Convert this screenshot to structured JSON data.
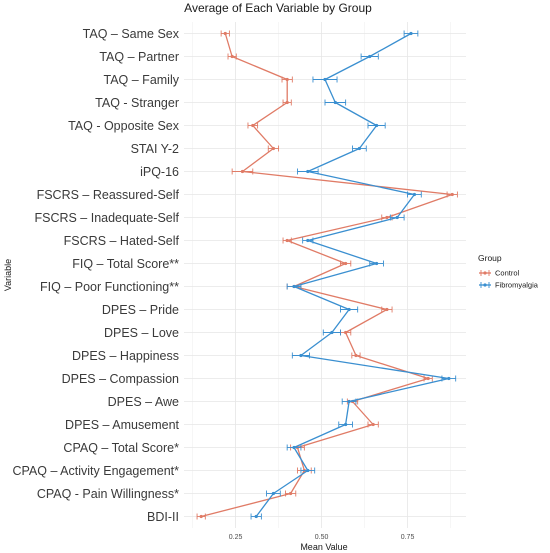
{
  "chart_data": {
    "type": "line",
    "title": "Average of Each Variable by Group",
    "xlabel": "Mean Value",
    "ylabel": "Variable",
    "xlim": [
      0.1,
      0.92
    ],
    "xticks": [
      0.25,
      0.5,
      0.75
    ],
    "xtick_labels": [
      "0.25",
      "0.50",
      "0.75"
    ],
    "grid": true,
    "orientation": "horizontal",
    "categories": [
      "TAQ – Same Sex",
      "TAQ – Partner",
      "TAQ – Family",
      "TAQ - Stranger",
      "TAQ - Opposite Sex",
      "STAI Y-2",
      "iPQ-16",
      "FSCRS – Reassured-Self",
      "FSCRS – Inadequate-Self",
      "FSCRS – Hated-Self",
      "FIQ – Total Score**",
      "FIQ – Poor Functioning**",
      "DPES – Pride",
      "DPES – Love",
      "DPES – Happiness",
      "DPES – Compassion",
      "DPES – Awe",
      "DPES – Amusement",
      "CPAQ – Total Score*",
      "CPAQ – Activity Engagement*",
      "CPAQ - Pain Willingness*",
      "BDI-II"
    ],
    "legend": {
      "title": "Group",
      "position": "right"
    },
    "series": [
      {
        "name": "Control",
        "color": "#e07b66",
        "values": [
          0.22,
          0.24,
          0.4,
          0.4,
          0.3,
          0.36,
          0.27,
          0.88,
          0.69,
          0.4,
          0.57,
          0.42,
          0.69,
          0.57,
          0.6,
          0.81,
          0.59,
          0.65,
          0.43,
          0.45,
          0.41,
          0.15
        ],
        "errors": [
          0.012,
          0.012,
          0.015,
          0.012,
          0.014,
          0.015,
          0.03,
          0.015,
          0.015,
          0.012,
          0.015,
          0.02,
          0.015,
          0.015,
          0.012,
          0.012,
          0.015,
          0.015,
          0.02,
          0.02,
          0.015,
          0.012
        ]
      },
      {
        "name": "Fibromyalgia",
        "color": "#3a8fd0",
        "values": [
          0.76,
          0.64,
          0.51,
          0.54,
          0.66,
          0.61,
          0.46,
          0.77,
          0.72,
          0.46,
          0.66,
          0.42,
          0.58,
          0.53,
          0.44,
          0.87,
          0.58,
          0.57,
          0.42,
          0.46,
          0.36,
          0.31
        ],
        "errors": [
          0.02,
          0.025,
          0.035,
          0.03,
          0.025,
          0.02,
          0.03,
          0.02,
          0.02,
          0.015,
          0.02,
          0.02,
          0.025,
          0.025,
          0.025,
          0.02,
          0.02,
          0.02,
          0.02,
          0.02,
          0.02,
          0.015
        ]
      }
    ]
  }
}
